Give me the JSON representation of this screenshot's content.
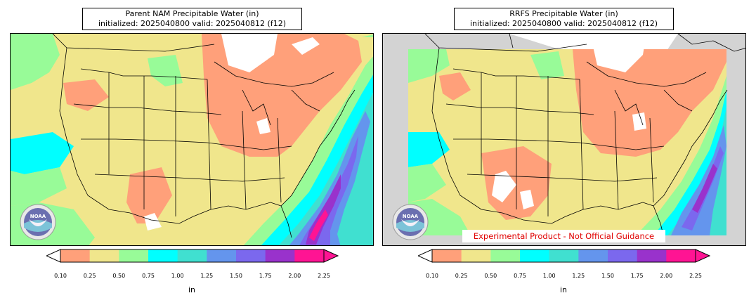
{
  "left_panel": {
    "title_line1": "Parent NAM Precipitable Water (in)",
    "title_line2": "initialized: 2025040800 valid: 2025040812 (f12)"
  },
  "right_panel": {
    "title_line1": "RRFS Precipitable Water (in)",
    "title_line2": "initialized: 2025040800 valid: 2025040812 (f12)",
    "banner": "Experimental Product - Not Official Guidance"
  },
  "logo": {
    "text": "NOAA",
    "ring_text": "NATIONAL OCEANIC AND ATMOSPHERIC ADMINISTRATION · U.S. DEPARTMENT OF COMMERCE"
  },
  "colorbar": {
    "unit": "in",
    "ticks": [
      "0.10",
      "0.25",
      "0.50",
      "0.75",
      "1.00",
      "1.25",
      "1.50",
      "1.75",
      "2.00",
      "2.25"
    ],
    "colors": [
      "#ffa07a",
      "#f0e68c",
      "#98fb98",
      "#00ffff",
      "#40e0d0",
      "#6495ed",
      "#7b68ee",
      "#9932cc",
      "#ff1493"
    ],
    "extend": "both",
    "under_color": "#ffffff",
    "over_color": "#ff1493"
  },
  "colors": {
    "no_data": "#d3d3d3",
    "border_lines": "#000000"
  }
}
